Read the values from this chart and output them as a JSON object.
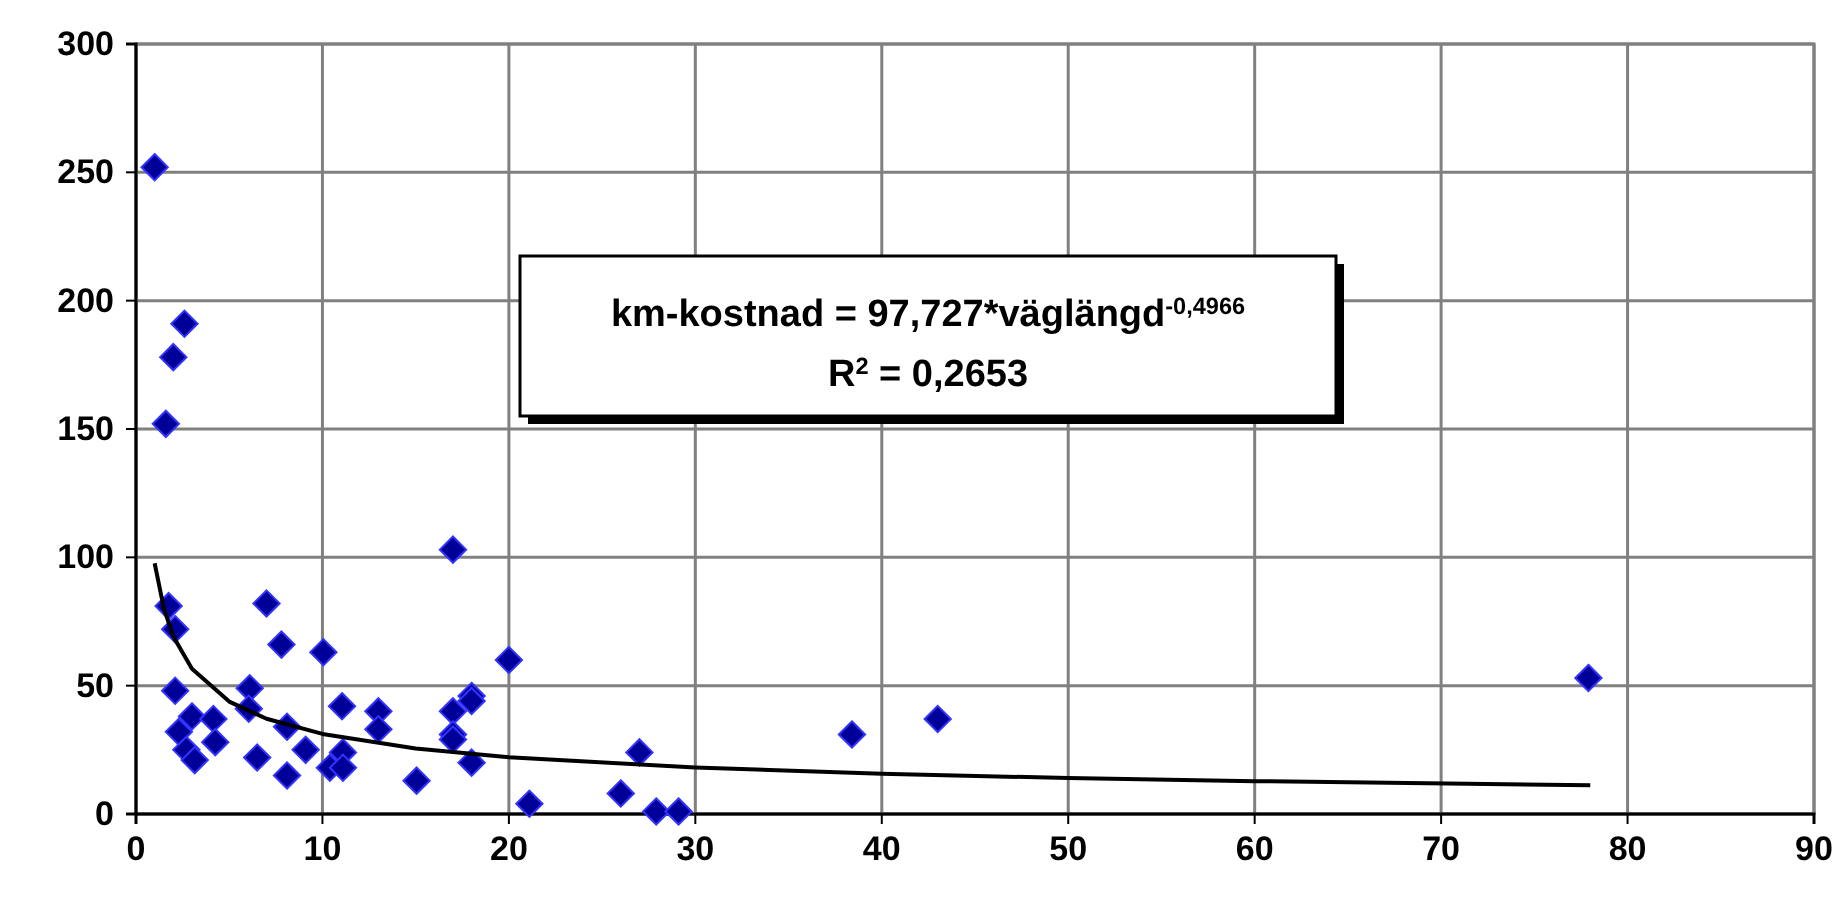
{
  "chart_data": {
    "type": "scatter",
    "xlim": [
      0,
      90
    ],
    "xticks": [
      0,
      10,
      20,
      30,
      40,
      50,
      60,
      70,
      80,
      90
    ],
    "ylim": [
      0,
      300
    ],
    "yticks": [
      0,
      50,
      100,
      150,
      200,
      250,
      300
    ],
    "grid": true,
    "marker": "diamond",
    "annotations": [
      "km-kostnad = 97,727*väglängd$^{-0,4966}$",
      "R$^{2}$ = 0,2653"
    ],
    "series": [
      {
        "color": "#000099",
        "x": [
          1.0,
          1.6,
          2.0,
          2.6,
          1.75,
          2.1,
          2.1,
          3.0,
          2.3,
          4.15,
          2.7,
          3.15,
          4.25,
          7.0,
          7.8,
          6.1,
          6.05,
          8.1,
          6.5,
          8.1,
          9.1,
          10.05,
          11.05,
          11.1,
          10.4,
          11.1,
          13.0,
          13.0,
          15.05,
          17.0,
          17.0,
          17.0,
          17.0,
          18.0,
          18.0,
          18.0,
          20.0,
          21.1,
          26.0,
          27.0,
          27.9,
          29.1,
          38.4,
          43.0,
          77.9
        ],
        "values": [
          252,
          152,
          178,
          191,
          81,
          72,
          48,
          38,
          32,
          37,
          25,
          21,
          28,
          82,
          66,
          49,
          41,
          34,
          22,
          15,
          25,
          63,
          42,
          24,
          18,
          18,
          40,
          33,
          13,
          103,
          40,
          31,
          29,
          46,
          44,
          20,
          60,
          4,
          8,
          24,
          1,
          1,
          31,
          37,
          53
        ]
      },
      {
        "type": "line",
        "color": "#000000",
        "marker": "none",
        "x": [
          1,
          1.5,
          2,
          3,
          5,
          7,
          10,
          15,
          20,
          30,
          40,
          50,
          60,
          78
        ],
        "values": [
          97.7,
          79.9,
          69.2,
          56.6,
          43.8,
          37.1,
          31.2,
          25.5,
          22.1,
          18.1,
          15.7,
          14.0,
          12.8,
          11.2
        ]
      }
    ]
  }
}
